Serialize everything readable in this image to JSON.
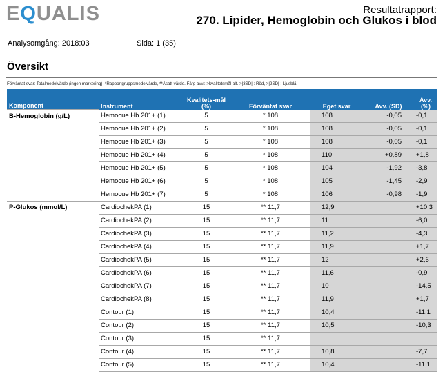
{
  "header": {
    "logo_pre": "E",
    "logo_q": "Q",
    "logo_post": "UALIS",
    "report_label": "Resultatrapport:",
    "report_title": "270. Lipider, Hemoglobin och Glukos i blod"
  },
  "meta": {
    "round": "Analysomgång: 2018:03",
    "page": "Sida: 1 (35)"
  },
  "section_title": "Översikt",
  "note": "Förväntat svar: Totalmedelvärde (ingen markering), *Rapportgruppsmedelvärde, **Åsatt värde.    Färg avv.: >kvalitetsmål alt. >|3SD| : Röd,  >|2SD| : Ljusblå",
  "table": {
    "headers": {
      "komponent": "Komponent",
      "instrument": "Instrument",
      "kvalitetsmal": "Kvalitets-mål (%)",
      "forvantat": "Förväntat svar",
      "eget": "Eget svar",
      "avv_sd": "Avv. (SD)",
      "avv_pct": "Avv. (%)"
    },
    "rows": [
      {
        "komponent": "B-Hemoglobin (g/L)",
        "instrument": "Hemocue Hb 201+ (1)",
        "kval": "5",
        "forv": "* 108",
        "eget": "108",
        "avv_sd": "-0,05",
        "avv_pct": "-0,1"
      },
      {
        "komponent": "",
        "instrument": "Hemocue Hb 201+ (2)",
        "kval": "5",
        "forv": "* 108",
        "eget": "108",
        "avv_sd": "-0,05",
        "avv_pct": "-0,1"
      },
      {
        "komponent": "",
        "instrument": "Hemocue Hb 201+ (3)",
        "kval": "5",
        "forv": "* 108",
        "eget": "108",
        "avv_sd": "-0,05",
        "avv_pct": "-0,1"
      },
      {
        "komponent": "",
        "instrument": "Hemocue Hb 201+ (4)",
        "kval": "5",
        "forv": "* 108",
        "eget": "110",
        "avv_sd": "+0,89",
        "avv_pct": "+1,8"
      },
      {
        "komponent": "",
        "instrument": "Hemocue Hb 201+ (5)",
        "kval": "5",
        "forv": "* 108",
        "eget": "104",
        "avv_sd": "-1,92",
        "avv_pct": "-3,8"
      },
      {
        "komponent": "",
        "instrument": "Hemocue Hb 201+ (6)",
        "kval": "5",
        "forv": "* 108",
        "eget": "105",
        "avv_sd": "-1,45",
        "avv_pct": "-2,9"
      },
      {
        "komponent": "",
        "instrument": "Hemocue Hb 201+ (7)",
        "kval": "5",
        "forv": "* 108",
        "eget": "106",
        "avv_sd": "-0,98",
        "avv_pct": "-1,9"
      },
      {
        "komponent": "P-Glukos (mmol/L)",
        "instrument": "CardiochekPA (1)",
        "kval": "15",
        "forv": "** 11,7",
        "eget": "12,9",
        "avv_sd": "",
        "avv_pct": "+10,3"
      },
      {
        "komponent": "",
        "instrument": "CardiochekPA (2)",
        "kval": "15",
        "forv": "** 11,7",
        "eget": "11",
        "avv_sd": "",
        "avv_pct": "-6,0"
      },
      {
        "komponent": "",
        "instrument": "CardiochekPA (3)",
        "kval": "15",
        "forv": "** 11,7",
        "eget": "11,2",
        "avv_sd": "",
        "avv_pct": "-4,3"
      },
      {
        "komponent": "",
        "instrument": "CardiochekPA (4)",
        "kval": "15",
        "forv": "** 11,7",
        "eget": "11,9",
        "avv_sd": "",
        "avv_pct": "+1,7"
      },
      {
        "komponent": "",
        "instrument": "CardiochekPA (5)",
        "kval": "15",
        "forv": "** 11,7",
        "eget": "12",
        "avv_sd": "",
        "avv_pct": "+2,6"
      },
      {
        "komponent": "",
        "instrument": "CardiochekPA (6)",
        "kval": "15",
        "forv": "** 11,7",
        "eget": "11,6",
        "avv_sd": "",
        "avv_pct": "-0,9"
      },
      {
        "komponent": "",
        "instrument": "CardiochekPA (7)",
        "kval": "15",
        "forv": "** 11,7",
        "eget": "10",
        "avv_sd": "",
        "avv_pct": "-14,5"
      },
      {
        "komponent": "",
        "instrument": "CardiochekPA (8)",
        "kval": "15",
        "forv": "** 11,7",
        "eget": "11,9",
        "avv_sd": "",
        "avv_pct": "+1,7"
      },
      {
        "komponent": "",
        "instrument": "Contour (1)",
        "kval": "15",
        "forv": "** 11,7",
        "eget": "10,4",
        "avv_sd": "",
        "avv_pct": "-11,1"
      },
      {
        "komponent": "",
        "instrument": "Contour (2)",
        "kval": "15",
        "forv": "** 11,7",
        "eget": "10,5",
        "avv_sd": "",
        "avv_pct": "-10,3"
      },
      {
        "komponent": "",
        "instrument": "Contour (3)",
        "kval": "15",
        "forv": "** 11,7",
        "eget": "",
        "avv_sd": "",
        "avv_pct": ""
      },
      {
        "komponent": "",
        "instrument": "Contour (4)",
        "kval": "15",
        "forv": "** 11,7",
        "eget": "10,8",
        "avv_sd": "",
        "avv_pct": "-7,7"
      },
      {
        "komponent": "",
        "instrument": "Contour (5)",
        "kval": "15",
        "forv": "** 11,7",
        "eget": "10,4",
        "avv_sd": "",
        "avv_pct": "-11,1"
      }
    ]
  }
}
